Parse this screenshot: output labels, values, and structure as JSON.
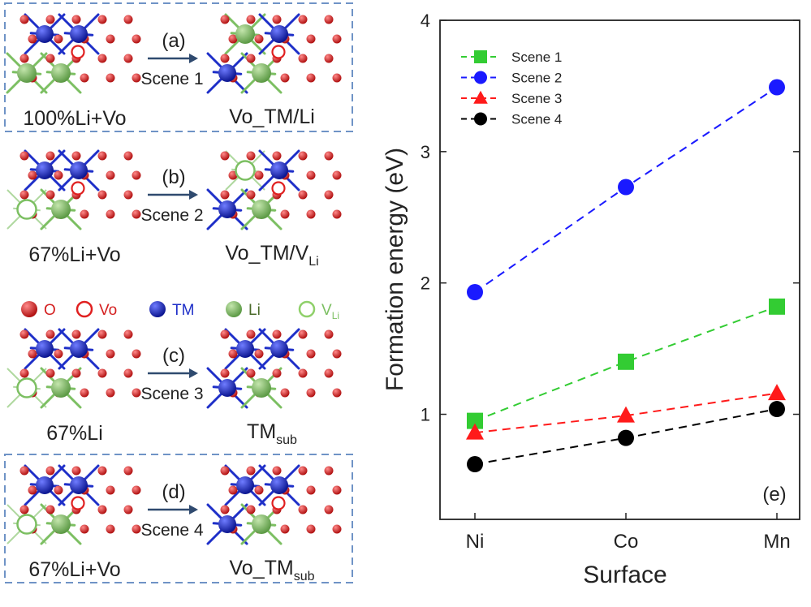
{
  "schemes": [
    {
      "panel": "(a)",
      "scene": "Scene 1",
      "before": "100%Li+Vo",
      "after": "Vo_TM/Li",
      "after_sub": "",
      "boxed": true
    },
    {
      "panel": "(b)",
      "scene": "Scene 2",
      "before": "67%Li+Vo",
      "after": "Vo_TM/V",
      "after_sub": "Li",
      "boxed": false
    },
    {
      "panel": "(c)",
      "scene": "Scene 3",
      "before": "67%Li",
      "after": "TM",
      "after_sub": "sub",
      "boxed": false
    },
    {
      "panel": "(d)",
      "scene": "Scene 4",
      "before": "67%Li+Vo",
      "after": "Vo_TM",
      "after_sub": "sub",
      "boxed": true
    }
  ],
  "atom_legend": [
    {
      "label": "O",
      "sub": "",
      "icon": "oxygen-atom-icon",
      "color": "#d42020",
      "text_color": "#d42020"
    },
    {
      "label": "Vo",
      "sub": "",
      "icon": "oxygen-vacancy-icon",
      "color": "#e02020",
      "text_color": "#d42020"
    },
    {
      "label": "TM",
      "sub": "",
      "icon": "transition-metal-atom-icon",
      "color": "#1e2fc8",
      "text_color": "#1e2fc8"
    },
    {
      "label": "Li",
      "sub": "",
      "icon": "lithium-atom-icon",
      "color": "#7cbf62",
      "text_color": "#4a6a2a"
    },
    {
      "label": "V",
      "sub": "Li",
      "icon": "lithium-vacancy-icon",
      "color": "#8fd06a",
      "text_color": "#7cbf62"
    }
  ],
  "colors": {
    "oxygen": "#cc1f1f",
    "tm": "#1e2fc8",
    "li": "#7cbf62",
    "bond": "#b5b5b5",
    "arrow": "#2f4a6f",
    "box": "#6f93c6"
  },
  "chart_data": {
    "type": "line",
    "categories": [
      "Ni",
      "Co",
      "Mn"
    ],
    "xlabel": "Surface",
    "ylabel": "Formation energy (eV)",
    "ylim": [
      0.2,
      4
    ],
    "yticks": [
      1,
      2,
      3,
      4
    ],
    "panel_label": "(e)",
    "legend_position": "top-left",
    "line_style": "dashed",
    "series": [
      {
        "name": "Scene 1",
        "marker": "square",
        "color": "#33cc33",
        "values": [
          0.95,
          1.4,
          1.82
        ]
      },
      {
        "name": "Scene 2",
        "marker": "circle",
        "color": "#1a1aff",
        "values": [
          1.93,
          2.73,
          3.49
        ]
      },
      {
        "name": "Scene 3",
        "marker": "triangle",
        "color": "#ff1a1a",
        "values": [
          0.86,
          0.99,
          1.16
        ]
      },
      {
        "name": "Scene 4",
        "marker": "circle",
        "color": "#000000",
        "values": [
          0.62,
          0.82,
          1.04
        ]
      }
    ]
  }
}
